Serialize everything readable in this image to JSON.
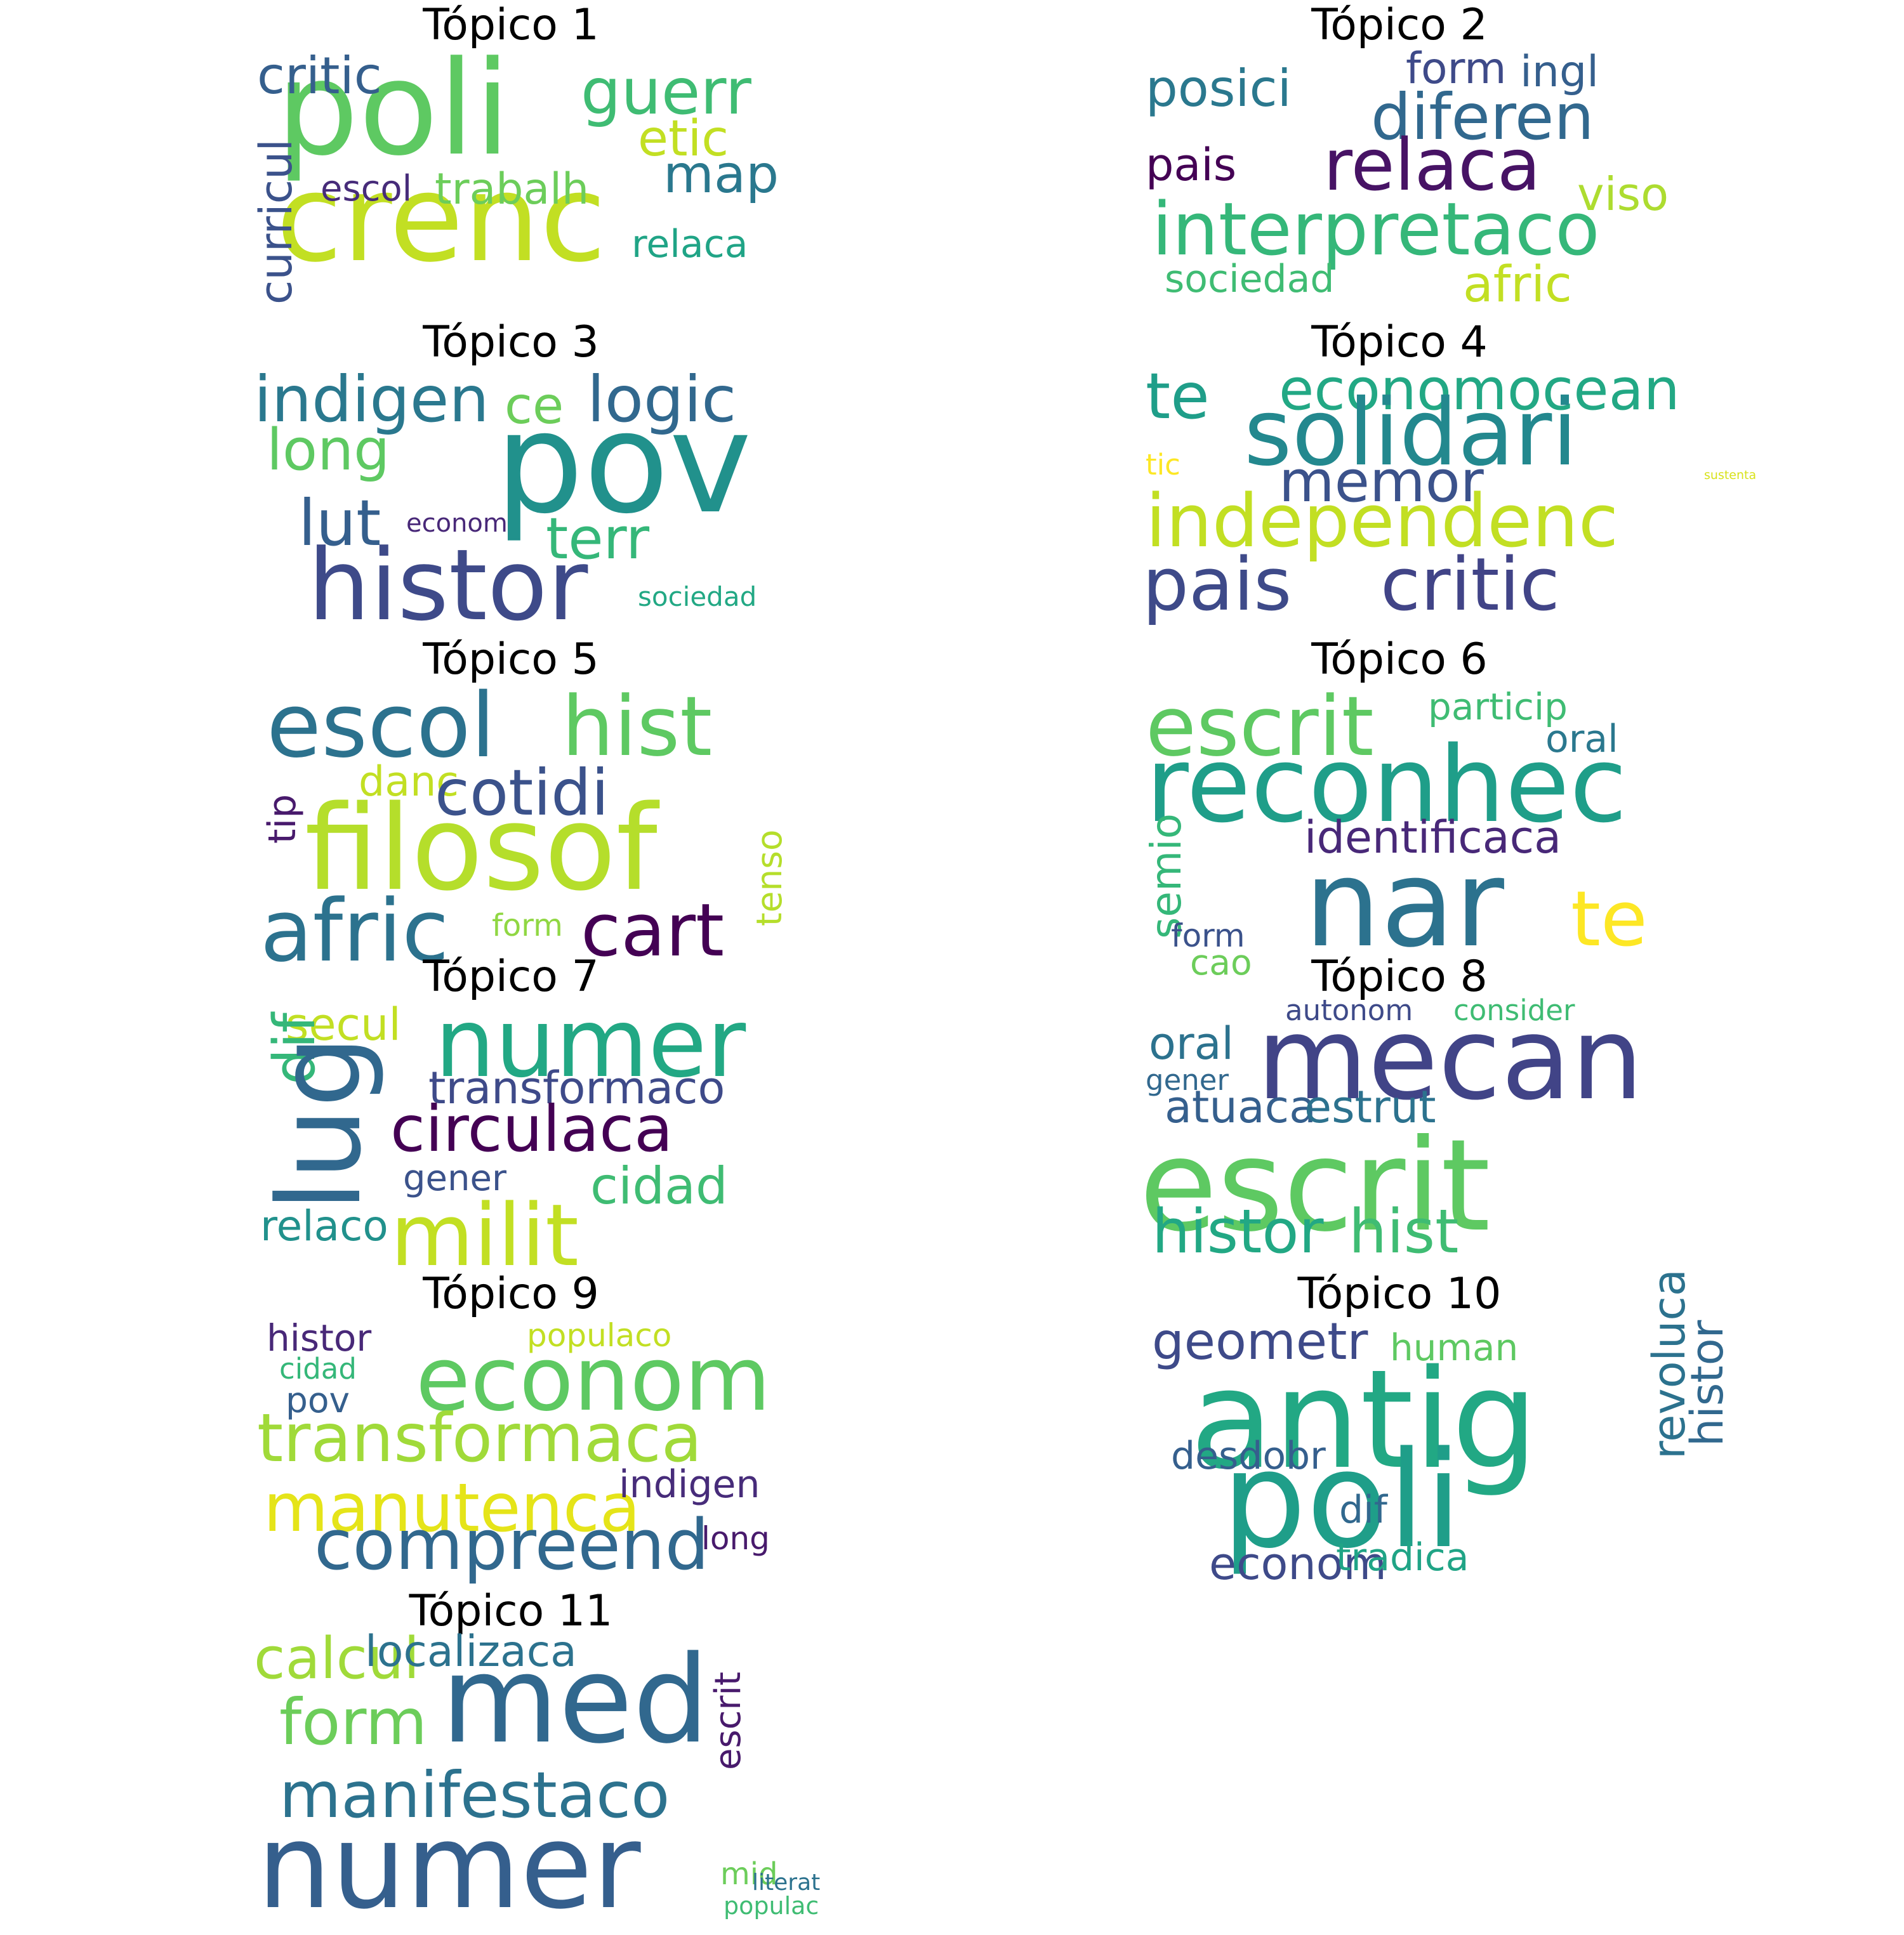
{
  "topics": [
    {
      "title": "Tópico 1",
      "words": [
        {
          "text": "poli",
          "color": "#5ec962"
        },
        {
          "text": "crenc",
          "color": "#c2df23"
        },
        {
          "text": "guerr",
          "color": "#3fbc73"
        },
        {
          "text": "critic",
          "color": "#355f8d"
        },
        {
          "text": "etic",
          "color": "#c2df23"
        },
        {
          "text": "map",
          "color": "#2a788e"
        },
        {
          "text": "escol",
          "color": "#472c7a"
        },
        {
          "text": "trabalh",
          "color": "#6ccd5a"
        },
        {
          "text": "relaca",
          "color": "#20a486"
        },
        {
          "text": "curricul",
          "color": "#3b528b"
        }
      ]
    },
    {
      "title": "Tópico 2",
      "words": [
        {
          "text": "posici",
          "color": "#2a788e"
        },
        {
          "text": "form",
          "color": "#3e4a89"
        },
        {
          "text": "ingl",
          "color": "#355f8d"
        },
        {
          "text": "diferen",
          "color": "#31688e"
        },
        {
          "text": "pais",
          "color": "#440154"
        },
        {
          "text": "relaca",
          "color": "#471365"
        },
        {
          "text": "viso",
          "color": "#addc30"
        },
        {
          "text": "interpretaco",
          "color": "#35b779"
        },
        {
          "text": "sociedad",
          "color": "#3fbc73"
        },
        {
          "text": "afric",
          "color": "#c2df23"
        }
      ]
    },
    {
      "title": "Tópico 3",
      "words": [
        {
          "text": "indigen",
          "color": "#2a788e"
        },
        {
          "text": "ce",
          "color": "#6ccd5a"
        },
        {
          "text": "logic",
          "color": "#31688e"
        },
        {
          "text": "long",
          "color": "#5ec962"
        },
        {
          "text": "pov",
          "color": "#21918c"
        },
        {
          "text": "lut",
          "color": "#355f8d"
        },
        {
          "text": "econom",
          "color": "#482878"
        },
        {
          "text": "terr",
          "color": "#35b779"
        },
        {
          "text": "histor",
          "color": "#3e4a89"
        },
        {
          "text": "sociedad",
          "color": "#22a884"
        }
      ]
    },
    {
      "title": "Tópico 4",
      "words": [
        {
          "text": "te",
          "color": "#1f9e89"
        },
        {
          "text": "economocean",
          "color": "#22a884"
        },
        {
          "text": "solidari",
          "color": "#23888e"
        },
        {
          "text": "tic",
          "color": "#fde725"
        },
        {
          "text": "memor",
          "color": "#3b528b"
        },
        {
          "text": "sustenta",
          "color": "#d8e219"
        },
        {
          "text": "independenc",
          "color": "#c2df23"
        },
        {
          "text": "pais",
          "color": "#3e4a89"
        },
        {
          "text": "critic",
          "color": "#414487"
        }
      ]
    },
    {
      "title": "Tópico 5",
      "words": [
        {
          "text": "escol",
          "color": "#2c728e"
        },
        {
          "text": "hist",
          "color": "#5ec962"
        },
        {
          "text": "danc",
          "color": "#c2df23"
        },
        {
          "text": "cotidi",
          "color": "#3b528b"
        },
        {
          "text": "tip",
          "color": "#481a6c"
        },
        {
          "text": "filosof",
          "color": "#b5de2b"
        },
        {
          "text": "afric",
          "color": "#2c728e"
        },
        {
          "text": "cart",
          "color": "#440154"
        },
        {
          "text": "form",
          "color": "#90d743"
        },
        {
          "text": "tenso",
          "color": "#b5de2b"
        }
      ]
    },
    {
      "title": "Tópico 6",
      "words": [
        {
          "text": "escrit",
          "color": "#5ec962"
        },
        {
          "text": "particip",
          "color": "#3fbc73"
        },
        {
          "text": "oral",
          "color": "#2a788e"
        },
        {
          "text": "reconhec",
          "color": "#1f9e89"
        },
        {
          "text": "identificaca",
          "color": "#482878"
        },
        {
          "text": "semio",
          "color": "#35b779"
        },
        {
          "text": "nar",
          "color": "#2c728e"
        },
        {
          "text": "te",
          "color": "#fde725"
        },
        {
          "text": "form",
          "color": "#3b528b"
        },
        {
          "text": "cao",
          "color": "#6ccd5a"
        }
      ]
    },
    {
      "title": "Tópico 7",
      "words": [
        {
          "text": "secul",
          "color": "#c2df23"
        },
        {
          "text": "numer",
          "color": "#22a884"
        },
        {
          "text": "dif",
          "color": "#35b779"
        },
        {
          "text": "lug",
          "color": "#31688e"
        },
        {
          "text": "transformaco",
          "color": "#3e4a89"
        },
        {
          "text": "circulaca",
          "color": "#440154"
        },
        {
          "text": "gener",
          "color": "#3b528b"
        },
        {
          "text": "cidad",
          "color": "#3fbc73"
        },
        {
          "text": "relaco",
          "color": "#21918c"
        },
        {
          "text": "milit",
          "color": "#c2df23"
        }
      ]
    },
    {
      "title": "Tópico 8",
      "words": [
        {
          "text": "autonom",
          "color": "#3e4a89"
        },
        {
          "text": "consider",
          "color": "#3fbc73"
        },
        {
          "text": "oral",
          "color": "#2c728e"
        },
        {
          "text": "mecan",
          "color": "#414487"
        },
        {
          "text": "gener",
          "color": "#31688e"
        },
        {
          "text": "atuaca",
          "color": "#355f8d"
        },
        {
          "text": "estrut",
          "color": "#2c728e"
        },
        {
          "text": "escrit",
          "color": "#5ec962"
        },
        {
          "text": "histor",
          "color": "#22a884"
        },
        {
          "text": "hist",
          "color": "#3fbc73"
        }
      ]
    },
    {
      "title": "Tópico 9",
      "words": [
        {
          "text": "histor",
          "color": "#482878"
        },
        {
          "text": "populaco",
          "color": "#c2df23"
        },
        {
          "text": "cidad",
          "color": "#35b779"
        },
        {
          "text": "econom",
          "color": "#5ec962"
        },
        {
          "text": "pov",
          "color": "#355f8d"
        },
        {
          "text": "transformaca",
          "color": "#a0da39"
        },
        {
          "text": "manutenca",
          "color": "#e5e419"
        },
        {
          "text": "indigen",
          "color": "#472c7a"
        },
        {
          "text": "compreend",
          "color": "#31688e"
        },
        {
          "text": "long",
          "color": "#481a6c"
        }
      ]
    },
    {
      "title": "Tópico 10",
      "words": [
        {
          "text": "geometr",
          "color": "#3e4a89"
        },
        {
          "text": "human",
          "color": "#5ec962"
        },
        {
          "text": "antig",
          "color": "#22a884"
        },
        {
          "text": "revoluca",
          "color": "#2c728e"
        },
        {
          "text": "histor",
          "color": "#31688e"
        },
        {
          "text": "desdobr",
          "color": "#355f8d"
        },
        {
          "text": "poli",
          "color": "#1f9e89"
        },
        {
          "text": "dif",
          "color": "#31688e"
        },
        {
          "text": "econom",
          "color": "#3e4a89"
        },
        {
          "text": "tradica",
          "color": "#20a486"
        }
      ]
    },
    {
      "title": "Tópico 11",
      "words": [
        {
          "text": "calcul",
          "color": "#a0da39"
        },
        {
          "text": "localizaca",
          "color": "#2c728e"
        },
        {
          "text": "escrit",
          "color": "#481a6c"
        },
        {
          "text": "med",
          "color": "#31688e"
        },
        {
          "text": "form",
          "color": "#6ccd5a"
        },
        {
          "text": "manifestaco",
          "color": "#2c728e"
        },
        {
          "text": "numer",
          "color": "#355f8d"
        },
        {
          "text": "mid",
          "color": "#6ccd5a"
        },
        {
          "text": "literat",
          "color": "#2c728e"
        },
        {
          "text": "populac",
          "color": "#3fbc73"
        }
      ]
    }
  ]
}
